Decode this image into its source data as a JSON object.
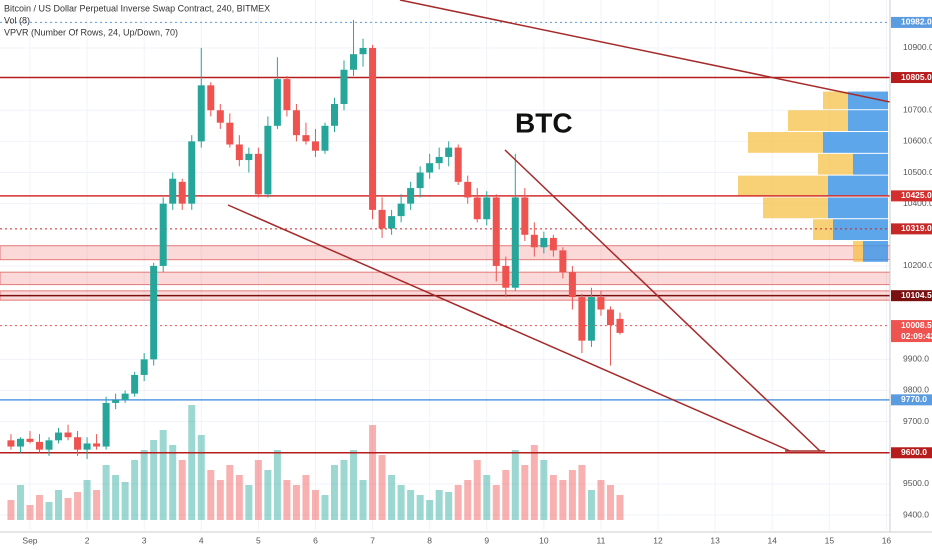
{
  "chart_data": {
    "type": "candlestick",
    "title": "Bitcoin / US Dollar Perpetual Inverse Swap Contract, 240, BITMEX",
    "indicators": [
      "Vol (8)",
      "VPVR (Number Of Rows, 24, Up/Down, 70)"
    ],
    "annotation": "BTC",
    "up_color": "#26a69a",
    "down_color": "#ef5350",
    "x": [
      -8,
      -4,
      0,
      4,
      8,
      12,
      16,
      20,
      24,
      28,
      32,
      36,
      40,
      44,
      48,
      52,
      56,
      60,
      64,
      68,
      72,
      76,
      80,
      84,
      88,
      92,
      96,
      100,
      104,
      108,
      112,
      116,
      120,
      124,
      128,
      132,
      136,
      140,
      144,
      148,
      152,
      156,
      160,
      164,
      168,
      172,
      176,
      180,
      184,
      188,
      192,
      196,
      200,
      204,
      208,
      212,
      216,
      220,
      224,
      228,
      232,
      236,
      240,
      244,
      248
    ],
    "open": [
      9640,
      9620,
      9645,
      9635,
      9610,
      9640,
      9665,
      9650,
      9610,
      9630,
      9620,
      9760,
      9770,
      9790,
      9850,
      9900,
      10200,
      10400,
      10470,
      10400,
      10600,
      10780,
      10700,
      10660,
      10590,
      10540,
      10560,
      10430,
      10650,
      10800,
      10700,
      10620,
      10600,
      10570,
      10650,
      10720,
      10830,
      10880,
      10900,
      10380,
      10320,
      10360,
      10400,
      10450,
      10500,
      10530,
      10550,
      10580,
      10470,
      10420,
      10350,
      10420,
      10200,
      10130,
      10420,
      10300,
      10260,
      10290,
      10250,
      10180,
      10100,
      9960,
      10100,
      10060,
      10030
    ],
    "high": [
      9660,
      9650,
      9670,
      9660,
      9650,
      9680,
      9690,
      9670,
      9650,
      9660,
      9780,
      9790,
      9800,
      9860,
      9920,
      10210,
      10420,
      10500,
      10480,
      10620,
      10900,
      10790,
      10720,
      10690,
      10620,
      10580,
      10580,
      10680,
      10870,
      10810,
      10720,
      10660,
      10640,
      10660,
      10740,
      10860,
      10990,
      10930,
      10910,
      10420,
      10380,
      10430,
      10470,
      10520,
      10560,
      10580,
      10600,
      10590,
      10490,
      10450,
      10440,
      10430,
      10230,
      10560,
      10450,
      10340,
      10310,
      10300,
      10260,
      10200,
      10110,
      10130,
      10120,
      10070,
      10050
    ],
    "low": [
      9610,
      9600,
      9630,
      9600,
      9590,
      9630,
      9640,
      9590,
      9580,
      9610,
      9610,
      9740,
      9760,
      9780,
      9830,
      9880,
      10180,
      10380,
      10380,
      10380,
      10580,
      10680,
      10640,
      10580,
      10520,
      10500,
      10420,
      10420,
      10640,
      10680,
      10600,
      10590,
      10550,
      10560,
      10630,
      10700,
      10810,
      10840,
      10350,
      10290,
      10300,
      10340,
      10380,
      10420,
      10480,
      10510,
      10520,
      10460,
      10400,
      10340,
      10330,
      10150,
      10100,
      10120,
      10280,
      10230,
      10240,
      10230,
      10160,
      10060,
      9920,
      9940,
      10040,
      9880,
      9980
    ],
    "close": [
      9620,
      9645,
      9635,
      9610,
      9640,
      9665,
      9650,
      9610,
      9630,
      9620,
      9760,
      9770,
      9790,
      9850,
      9900,
      10200,
      10400,
      10480,
      10400,
      10600,
      10780,
      10700,
      10660,
      10590,
      10540,
      10560,
      10430,
      10650,
      10800,
      10700,
      10620,
      10600,
      10570,
      10650,
      10720,
      10830,
      10880,
      10900,
      10380,
      10320,
      10360,
      10400,
      10450,
      10500,
      10530,
      10550,
      10580,
      10470,
      10420,
      10350,
      10420,
      10200,
      10130,
      10420,
      10300,
      10260,
      10290,
      10250,
      10180,
      10100,
      9960,
      10100,
      10060,
      10010,
      9985
    ],
    "volume": [
      20,
      35,
      15,
      25,
      18,
      30,
      22,
      28,
      40,
      30,
      55,
      45,
      38,
      60,
      70,
      80,
      90,
      75,
      60,
      115,
      85,
      50,
      40,
      55,
      45,
      35,
      60,
      50,
      70,
      40,
      35,
      45,
      30,
      25,
      55,
      60,
      70,
      40,
      95,
      65,
      45,
      35,
      30,
      25,
      20,
      30,
      28,
      35,
      40,
      60,
      45,
      35,
      50,
      70,
      55,
      75,
      60,
      45,
      40,
      50,
      55,
      30,
      40,
      35,
      25
    ],
    "volume_ylim": [
      0,
      120
    ],
    "volume_profile": [
      {
        "low": 10700,
        "high": 10760,
        "up": 40,
        "down": 25
      },
      {
        "low": 10630,
        "high": 10700,
        "up": 40,
        "down": 60
      },
      {
        "low": 10560,
        "high": 10630,
        "up": 65,
        "down": 75
      },
      {
        "low": 10490,
        "high": 10560,
        "up": 35,
        "down": 35
      },
      {
        "low": 10420,
        "high": 10490,
        "up": 60,
        "down": 90
      },
      {
        "low": 10350,
        "high": 10420,
        "up": 60,
        "down": 65
      },
      {
        "low": 10280,
        "high": 10350,
        "up": 55,
        "down": 20
      },
      {
        "low": 10210,
        "high": 10280,
        "up": 25,
        "down": 10
      }
    ],
    "levels": [
      {
        "value": 10982,
        "label": "10982.0",
        "color": "#5b9be0",
        "style": "dotted"
      },
      {
        "value": 10805,
        "label": "10805.0",
        "color": "#b71c1c",
        "style": "solid"
      },
      {
        "value": 10425,
        "label": "10425.0",
        "color": "#d32f2f",
        "style": "solid"
      },
      {
        "value": 10319,
        "label": "10319.0",
        "color": "#c62828",
        "style": "dotted"
      },
      {
        "value": 10104.5,
        "label": "10104.5",
        "color": "#7a1010",
        "style": "solid"
      },
      {
        "value": 10008.5,
        "label": "10008.5",
        "color": "#ef5350",
        "style": "dotted",
        "countdown": "02:09:42"
      },
      {
        "value": 9770,
        "label": "9770.0",
        "color": "#5b9be0",
        "style": "solid"
      },
      {
        "value": 9600,
        "label": "9600.0",
        "color": "#b71c1c",
        "style": "solid"
      }
    ],
    "zones": [
      [
        10220,
        10265
      ],
      [
        10140,
        10180
      ],
      [
        10090,
        10120
      ]
    ],
    "xlim": [
      -12.6,
      361.5
    ],
    "ylim": [
      9352,
      11054
    ],
    "yticks": [
      {
        "value": 9400,
        "label": "9400.0"
      },
      {
        "value": 9500,
        "label": "9500.0"
      },
      {
        "value": 9700,
        "label": "9700.0"
      },
      {
        "value": 9800,
        "label": "9800.0"
      },
      {
        "value": 9900,
        "label": "9900.0"
      },
      {
        "value": 10200,
        "label": "10200.0"
      },
      {
        "value": 10400,
        "label": "10400.0"
      },
      {
        "value": 10500,
        "label": "10500.0"
      },
      {
        "value": 10600,
        "label": "10600.0"
      },
      {
        "value": 10700,
        "label": "10700.0"
      },
      {
        "value": 10900,
        "label": "10900.0"
      }
    ],
    "xticks": [
      {
        "value": 0,
        "label": "Sep"
      },
      {
        "value": 24,
        "label": "2"
      },
      {
        "value": 48,
        "label": "3"
      },
      {
        "value": 72,
        "label": "4"
      },
      {
        "value": 96,
        "label": "5"
      },
      {
        "value": 120,
        "label": "6"
      },
      {
        "value": 144,
        "label": "7"
      },
      {
        "value": 168,
        "label": "8"
      },
      {
        "value": 192,
        "label": "9"
      },
      {
        "value": 216,
        "label": "10"
      },
      {
        "value": 240,
        "label": "11"
      },
      {
        "value": 264,
        "label": "12"
      },
      {
        "value": 288,
        "label": "13"
      },
      {
        "value": 312,
        "label": "14"
      },
      {
        "value": 336,
        "label": "15"
      },
      {
        "value": 360,
        "label": "16"
      }
    ]
  }
}
